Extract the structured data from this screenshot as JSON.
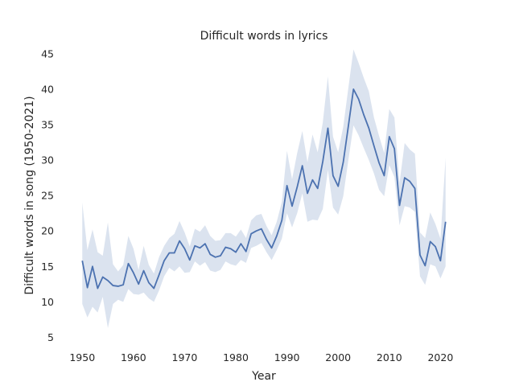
{
  "chart_data": {
    "type": "line",
    "title": "Difficult words in lyrics",
    "xlabel": "Year",
    "ylabel": "Difficult words in song (1950-2021)",
    "xlim": [
      1946.5,
      2024.5
    ],
    "ylim": [
      3.8,
      46.0
    ],
    "xticks": [
      1950,
      1960,
      1970,
      1980,
      1990,
      2000,
      2010,
      2020
    ],
    "yticks": [
      5,
      10,
      15,
      20,
      25,
      30,
      35,
      40,
      45
    ],
    "grid": false,
    "legend": "none",
    "colors": {
      "line": "#4c72b0",
      "band": "#4c72b0"
    },
    "series": [
      {
        "x": [
          1950,
          1951,
          1952,
          1953,
          1954,
          1955,
          1956,
          1957,
          1958,
          1959,
          1960,
          1961,
          1962,
          1963,
          1964,
          1965,
          1966,
          1967,
          1968,
          1969,
          1970,
          1971,
          1972,
          1973,
          1974,
          1975,
          1976,
          1977,
          1978,
          1979,
          1980,
          1981,
          1982,
          1983,
          1984,
          1985,
          1986,
          1987,
          1988,
          1989,
          1990,
          1991,
          1992,
          1993,
          1994,
          1995,
          1996,
          1997,
          1998,
          1999,
          2000,
          2001,
          2002,
          2003,
          2004,
          2005,
          2006,
          2007,
          2008,
          2009,
          2010,
          2011,
          2012,
          2013,
          2014,
          2015,
          2016,
          2017,
          2018,
          2019,
          2020,
          2021
        ],
        "y": [
          15.8,
          12.0,
          15.0,
          11.9,
          13.5,
          13.0,
          12.3,
          12.2,
          12.4,
          15.4,
          14.1,
          12.5,
          14.4,
          12.7,
          11.9,
          13.8,
          15.8,
          16.9,
          16.9,
          18.6,
          17.5,
          15.9,
          17.9,
          17.6,
          18.2,
          16.7,
          16.3,
          16.5,
          17.7,
          17.5,
          17.0,
          18.2,
          17.1,
          19.6,
          20.0,
          20.3,
          18.8,
          17.6,
          19.3,
          21.5,
          26.4,
          23.5,
          26.2,
          29.2,
          25.3,
          27.2,
          26.0,
          29.8,
          34.5,
          27.8,
          26.3,
          29.7,
          34.8,
          40.0,
          38.6,
          36.4,
          34.5,
          32.0,
          29.6,
          27.8,
          33.3,
          31.6,
          23.6,
          27.5,
          27.0,
          26.0,
          16.6,
          15.1,
          18.5,
          17.8,
          15.8,
          21.3
        ],
        "lower": [
          9.7,
          7.8,
          9.3,
          8.5,
          10.7,
          6.3,
          9.7,
          10.3,
          10.0,
          11.8,
          11.1,
          11.0,
          11.3,
          10.5,
          10.0,
          11.6,
          13.6,
          14.8,
          14.3,
          15.0,
          14.1,
          14.2,
          15.7,
          15.1,
          15.6,
          14.4,
          14.2,
          14.5,
          15.7,
          15.3,
          15.1,
          15.9,
          15.5,
          17.6,
          17.9,
          18.3,
          17.0,
          15.9,
          17.3,
          18.9,
          22.5,
          20.5,
          22.5,
          25.3,
          21.3,
          21.6,
          21.5,
          23.1,
          28.6,
          23.3,
          22.3,
          24.9,
          30.0,
          34.9,
          33.5,
          31.7,
          30.0,
          28.1,
          25.8,
          24.9,
          29.3,
          27.6,
          20.8,
          23.5,
          23.3,
          22.7,
          13.6,
          12.4,
          15.3,
          15.0,
          13.3,
          15.0
        ],
        "upper": [
          24.0,
          17.3,
          20.2,
          17.0,
          16.5,
          21.2,
          15.3,
          14.3,
          15.2,
          19.3,
          17.5,
          14.5,
          17.9,
          15.2,
          14.0,
          16.3,
          17.9,
          19.0,
          19.6,
          21.4,
          19.8,
          17.8,
          20.3,
          19.9,
          20.8,
          19.3,
          18.6,
          18.7,
          19.7,
          19.7,
          19.2,
          20.2,
          19.0,
          21.5,
          22.2,
          22.4,
          20.7,
          19.4,
          21.3,
          24.1,
          31.3,
          27.3,
          31.0,
          34.1,
          29.7,
          33.6,
          31.1,
          35.3,
          41.8,
          33.3,
          31.1,
          34.7,
          40.2,
          45.6,
          43.7,
          41.6,
          39.7,
          36.0,
          33.4,
          31.0,
          37.2,
          36.0,
          26.8,
          32.4,
          31.5,
          30.9,
          19.8,
          19.0,
          22.6,
          21.0,
          18.9,
          30.3
        ]
      }
    ]
  }
}
